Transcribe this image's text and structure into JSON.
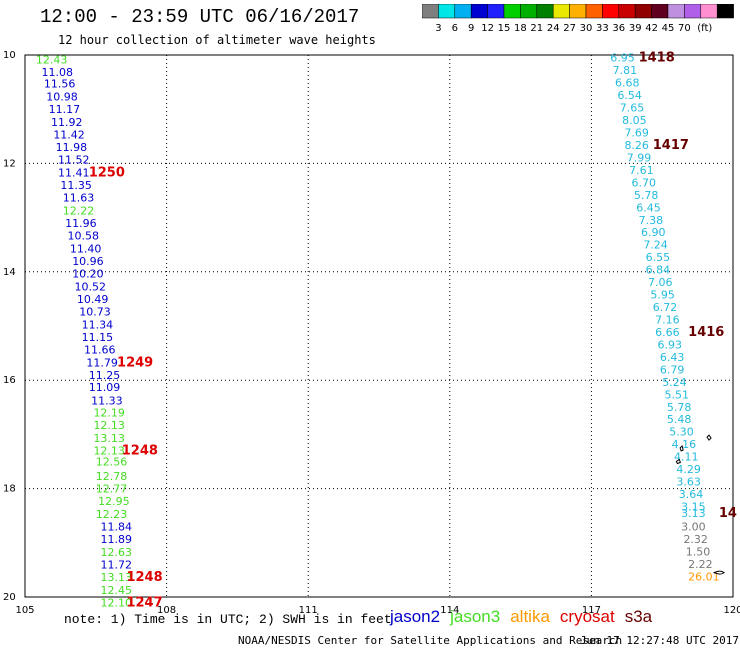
{
  "title": "12:00 - 23:59 UTC 06/16/2017",
  "subtitle": "12 hour collection of altimeter wave heights",
  "colorbar": {
    "colors": [
      "#7f7f7f",
      "#00e5e5",
      "#00b0f0",
      "#0000d0",
      "#2020ff",
      "#00d000",
      "#00b000",
      "#008000",
      "#e8e800",
      "#ffb000",
      "#ff6000",
      "#ff0000",
      "#c80000",
      "#900000",
      "#600020",
      "#c090e0",
      "#b060e8",
      "#ff90d0",
      "#000000"
    ],
    "labels": [
      "3",
      "6",
      "9",
      "12",
      "15",
      "18",
      "21",
      "24",
      "27",
      "30",
      "33",
      "36",
      "39",
      "42",
      "45",
      "70"
    ],
    "unit": "(ft)"
  },
  "map": {
    "lon_min": 105,
    "lon_max": 120,
    "lat_min": 10,
    "lat_max": 20,
    "x_ticks": [
      "105",
      "108",
      "111",
      "114",
      "117",
      "120"
    ],
    "y_ticks": [
      "10",
      "12",
      "14",
      "16",
      "18",
      "20"
    ]
  },
  "colors": {
    "jason2": "#0000cc",
    "jason3": "#44dd22",
    "altika": "#ff9900",
    "cryosat": "#dd0000",
    "s3a": "#660000",
    "s3a_track": "#22bbdd",
    "s3a_track_gray": "#777777"
  },
  "track_west": [
    {
      "lat": 10.08,
      "lon": 105.23,
      "v": "12.43",
      "c": "jason3"
    },
    {
      "lat": 10.31,
      "lon": 105.35,
      "v": "11.08",
      "c": "jason2"
    },
    {
      "lat": 10.53,
      "lon": 105.4,
      "v": "11.56",
      "c": "jason2"
    },
    {
      "lat": 10.77,
      "lon": 105.45,
      "v": "10.98",
      "c": "jason2"
    },
    {
      "lat": 11.0,
      "lon": 105.5,
      "v": "11.17",
      "c": "jason2"
    },
    {
      "lat": 11.24,
      "lon": 105.55,
      "v": "11.92",
      "c": "jason2"
    },
    {
      "lat": 11.47,
      "lon": 105.6,
      "v": "11.42",
      "c": "jason2"
    },
    {
      "lat": 11.7,
      "lon": 105.65,
      "v": "11.98",
      "c": "jason2"
    },
    {
      "lat": 11.93,
      "lon": 105.7,
      "v": "11.52",
      "c": "jason2"
    },
    {
      "lat": 12.17,
      "lon": 105.7,
      "v": "11.41",
      "c": "jason2"
    },
    {
      "lat": 12.4,
      "lon": 105.75,
      "v": "11.35",
      "c": "jason2"
    },
    {
      "lat": 12.63,
      "lon": 105.8,
      "v": "11.63",
      "c": "jason2"
    },
    {
      "lat": 12.87,
      "lon": 105.8,
      "v": "12.22",
      "c": "jason3"
    },
    {
      "lat": 13.1,
      "lon": 105.85,
      "v": "11.96",
      "c": "jason2"
    },
    {
      "lat": 13.33,
      "lon": 105.9,
      "v": "10.58",
      "c": "jason2"
    },
    {
      "lat": 13.57,
      "lon": 105.95,
      "v": "11.40",
      "c": "jason2"
    },
    {
      "lat": 13.8,
      "lon": 106.0,
      "v": "10.96",
      "c": "jason2"
    },
    {
      "lat": 14.03,
      "lon": 106.0,
      "v": "10.20",
      "c": "jason2"
    },
    {
      "lat": 14.27,
      "lon": 106.05,
      "v": "10.52",
      "c": "jason2"
    },
    {
      "lat": 14.5,
      "lon": 106.1,
      "v": "10.49",
      "c": "jason2"
    },
    {
      "lat": 14.73,
      "lon": 106.15,
      "v": "10.73",
      "c": "jason2"
    },
    {
      "lat": 14.97,
      "lon": 106.2,
      "v": "11.34",
      "c": "jason2"
    },
    {
      "lat": 15.2,
      "lon": 106.2,
      "v": "11.15",
      "c": "jason2"
    },
    {
      "lat": 15.43,
      "lon": 106.25,
      "v": "11.66",
      "c": "jason2"
    },
    {
      "lat": 15.67,
      "lon": 106.3,
      "v": "11.79",
      "c": "jason2"
    },
    {
      "lat": 15.9,
      "lon": 106.35,
      "v": "11.25",
      "c": "jason2"
    },
    {
      "lat": 16.13,
      "lon": 106.35,
      "v": "11.09",
      "c": "jason2"
    },
    {
      "lat": 16.37,
      "lon": 106.4,
      "v": "11.33",
      "c": "jason2"
    },
    {
      "lat": 16.6,
      "lon": 106.45,
      "v": "12.19",
      "c": "jason3"
    },
    {
      "lat": 16.83,
      "lon": 106.45,
      "v": "12.13",
      "c": "jason3"
    },
    {
      "lat": 17.07,
      "lon": 106.45,
      "v": "13.13",
      "c": "jason3"
    },
    {
      "lat": 17.3,
      "lon": 106.45,
      "v": "12.13",
      "c": "jason3"
    },
    {
      "lat": 17.5,
      "lon": 106.5,
      "v": "12.56",
      "c": "jason3"
    },
    {
      "lat": 17.77,
      "lon": 106.5,
      "v": "12.78",
      "c": "jason3"
    },
    {
      "lat": 18.0,
      "lon": 106.5,
      "v": "12.77",
      "c": "jason3"
    },
    {
      "lat": 18.23,
      "lon": 106.55,
      "v": "12.95",
      "c": "jason3"
    },
    {
      "lat": 18.47,
      "lon": 106.5,
      "v": "12.23",
      "c": "jason3"
    },
    {
      "lat": 18.7,
      "lon": 106.6,
      "v": "11.84",
      "c": "jason2"
    },
    {
      "lat": 18.93,
      "lon": 106.6,
      "v": "11.89",
      "c": "jason2"
    },
    {
      "lat": 19.17,
      "lon": 106.6,
      "v": "12.63",
      "c": "jason3"
    },
    {
      "lat": 19.4,
      "lon": 106.6,
      "v": "11.72",
      "c": "jason2"
    },
    {
      "lat": 19.63,
      "lon": 106.6,
      "v": "13.13",
      "c": "jason3"
    },
    {
      "lat": 19.87,
      "lon": 106.6,
      "v": "12.45",
      "c": "jason3"
    },
    {
      "lat": 20.1,
      "lon": 106.6,
      "v": "12.10",
      "c": "jason3"
    }
  ],
  "track_east": [
    {
      "lat": 10.05,
      "lon": 117.4,
      "v": "6.95",
      "c": "s3a_track"
    },
    {
      "lat": 10.28,
      "lon": 117.45,
      "v": "7.81",
      "c": "s3a_track"
    },
    {
      "lat": 10.51,
      "lon": 117.5,
      "v": "6.68",
      "c": "s3a_track"
    },
    {
      "lat": 10.74,
      "lon": 117.55,
      "v": "6.54",
      "c": "s3a_track"
    },
    {
      "lat": 10.97,
      "lon": 117.6,
      "v": "7.65",
      "c": "s3a_track"
    },
    {
      "lat": 11.2,
      "lon": 117.65,
      "v": "8.05",
      "c": "s3a_track"
    },
    {
      "lat": 11.43,
      "lon": 117.7,
      "v": "7.69",
      "c": "s3a_track"
    },
    {
      "lat": 11.66,
      "lon": 117.7,
      "v": "8.26",
      "c": "s3a_track"
    },
    {
      "lat": 11.89,
      "lon": 117.75,
      "v": "7.99",
      "c": "s3a_track"
    },
    {
      "lat": 12.12,
      "lon": 117.8,
      "v": "7.61",
      "c": "s3a_track"
    },
    {
      "lat": 12.35,
      "lon": 117.85,
      "v": "6.70",
      "c": "s3a_track"
    },
    {
      "lat": 12.58,
      "lon": 117.9,
      "v": "5.78",
      "c": "s3a_track"
    },
    {
      "lat": 12.81,
      "lon": 117.95,
      "v": "6.45",
      "c": "s3a_track"
    },
    {
      "lat": 13.04,
      "lon": 118.0,
      "v": "7.38",
      "c": "s3a_track"
    },
    {
      "lat": 13.27,
      "lon": 118.05,
      "v": "6.90",
      "c": "s3a_track"
    },
    {
      "lat": 13.5,
      "lon": 118.1,
      "v": "7.24",
      "c": "s3a_track"
    },
    {
      "lat": 13.73,
      "lon": 118.15,
      "v": "6.55",
      "c": "s3a_track"
    },
    {
      "lat": 13.96,
      "lon": 118.15,
      "v": "6.84",
      "c": "s3a_track"
    },
    {
      "lat": 14.19,
      "lon": 118.2,
      "v": "7.06",
      "c": "s3a_track"
    },
    {
      "lat": 14.42,
      "lon": 118.25,
      "v": "5.95",
      "c": "s3a_track"
    },
    {
      "lat": 14.65,
      "lon": 118.3,
      "v": "6.72",
      "c": "s3a_track"
    },
    {
      "lat": 14.88,
      "lon": 118.35,
      "v": "7.16",
      "c": "s3a_track"
    },
    {
      "lat": 15.11,
      "lon": 118.35,
      "v": "6.66",
      "c": "s3a_track"
    },
    {
      "lat": 15.34,
      "lon": 118.4,
      "v": "6.93",
      "c": "s3a_track"
    },
    {
      "lat": 15.57,
      "lon": 118.45,
      "v": "6.43",
      "c": "s3a_track"
    },
    {
      "lat": 15.8,
      "lon": 118.45,
      "v": "6.79",
      "c": "s3a_track"
    },
    {
      "lat": 16.03,
      "lon": 118.5,
      "v": "5.24",
      "c": "s3a_track"
    },
    {
      "lat": 16.26,
      "lon": 118.55,
      "v": "5.51",
      "c": "s3a_track"
    },
    {
      "lat": 16.49,
      "lon": 118.6,
      "v": "5.78",
      "c": "s3a_track"
    },
    {
      "lat": 16.72,
      "lon": 118.6,
      "v": "5.48",
      "c": "s3a_track"
    },
    {
      "lat": 16.95,
      "lon": 118.65,
      "v": "5.30",
      "c": "s3a_track"
    },
    {
      "lat": 17.18,
      "lon": 118.7,
      "v": "4.16",
      "c": "s3a_track"
    },
    {
      "lat": 17.41,
      "lon": 118.75,
      "v": "4.11",
      "c": "s3a_track"
    },
    {
      "lat": 17.64,
      "lon": 118.8,
      "v": "4.29",
      "c": "s3a_track"
    },
    {
      "lat": 17.87,
      "lon": 118.8,
      "v": "3.63",
      "c": "s3a_track"
    },
    {
      "lat": 18.1,
      "lon": 118.85,
      "v": "3.64",
      "c": "s3a_track"
    },
    {
      "lat": 18.33,
      "lon": 118.9,
      "v": "3.15",
      "c": "s3a_track"
    },
    {
      "lat": 18.45,
      "lon": 118.9,
      "v": "3.13",
      "c": "s3a_track"
    },
    {
      "lat": 18.7,
      "lon": 118.9,
      "v": "3.00",
      "c": "s3a_track_gray"
    },
    {
      "lat": 18.93,
      "lon": 118.95,
      "v": "2.32",
      "c": "s3a_track_gray"
    },
    {
      "lat": 19.16,
      "lon": 119.0,
      "v": "1.50",
      "c": "s3a_track_gray"
    },
    {
      "lat": 19.39,
      "lon": 119.05,
      "v": "2.22",
      "c": "s3a_track_gray"
    },
    {
      "lat": 19.62,
      "lon": 119.05,
      "v": "26.01",
      "c": "altika"
    }
  ],
  "times": [
    {
      "lat": 12.17,
      "lon": 106.35,
      "v": "1250",
      "c": "cryosat"
    },
    {
      "lat": 15.67,
      "lon": 106.95,
      "v": "1249",
      "c": "cryosat"
    },
    {
      "lat": 17.3,
      "lon": 107.05,
      "v": "1248",
      "c": "cryosat"
    },
    {
      "lat": 19.63,
      "lon": 107.15,
      "v": "1248",
      "c": "cryosat"
    },
    {
      "lat": 20.1,
      "lon": 107.15,
      "v": "1247",
      "c": "cryosat"
    },
    {
      "lat": 10.05,
      "lon": 118.0,
      "v": "1418",
      "c": "s3a"
    },
    {
      "lat": 11.66,
      "lon": 118.3,
      "v": "1417",
      "c": "s3a"
    },
    {
      "lat": 15.11,
      "lon": 119.05,
      "v": "1416",
      "c": "s3a"
    },
    {
      "lat": 18.45,
      "lon": 119.7,
      "v": "14",
      "c": "s3a"
    }
  ],
  "note": "note: 1) Time is in UTC; 2) SWH is in feet",
  "legend": [
    {
      "label": "jason2",
      "c": "jason2"
    },
    {
      "label": "jason3",
      "c": "jason3"
    },
    {
      "label": "altika",
      "c": "altika"
    },
    {
      "label": "cryosat",
      "c": "cryosat"
    },
    {
      "label": "s3a",
      "c": "s3a"
    }
  ],
  "credit": "NOAA/NESDIS Center for Satellite Applications and Research",
  "timestamp": "Jun 17 12:27:48 UTC 2017"
}
